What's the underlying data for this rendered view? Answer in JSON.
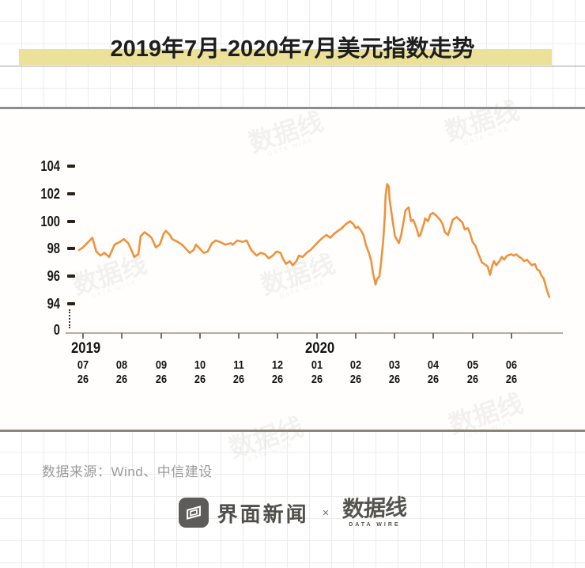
{
  "header": {
    "title": "2019年7月-2020年7月美元指数走势"
  },
  "source": {
    "label": "数据来源：Wind、中信建设"
  },
  "brand": {
    "jiemian": "界面新闻",
    "cross": "×",
    "datawire": "数据线",
    "datawire_sub": "DATA WIRE"
  },
  "watermark": {
    "text": "数据线",
    "sub": "DATA WIRE"
  },
  "colors": {
    "line": "#F0923C",
    "highlight": "#EBE199",
    "separator": "#8D8781",
    "grid": "#ECECEC",
    "axis_line": "#B3ACA3",
    "tick": "#2B2218",
    "label": "#1E1E1E",
    "muted": "#9B9B9B",
    "brand_gray": "#55544E"
  },
  "chart_data": {
    "type": "line",
    "title": "2019年7月-2020年7月美元指数走势",
    "series_name": "美元指数",
    "legend": "none",
    "grid": "off",
    "y_axis": {
      "ticks": [
        104,
        102,
        100,
        98,
        96,
        94
      ],
      "break_label": "0",
      "shown_range": [
        94,
        104
      ]
    },
    "x_axis": {
      "years": [
        "2019",
        "2020"
      ],
      "months": [
        "07",
        "08",
        "09",
        "10",
        "11",
        "12",
        "01",
        "02",
        "03",
        "04",
        "05",
        "06"
      ],
      "days": [
        "26",
        "26",
        "26",
        "26",
        "26",
        "26",
        "26",
        "26",
        "26",
        "26",
        "26",
        "26"
      ]
    },
    "points_note": "t = months after 2019-07-26, v = US Dollar Index",
    "points": [
      [
        -0.1,
        97.9
      ],
      [
        0.0,
        98.1
      ],
      [
        0.24,
        98.8
      ],
      [
        0.34,
        97.8
      ],
      [
        0.45,
        97.5
      ],
      [
        0.55,
        97.7
      ],
      [
        0.67,
        97.4
      ],
      [
        0.81,
        98.3
      ],
      [
        0.95,
        98.5
      ],
      [
        1.05,
        98.7
      ],
      [
        1.16,
        98.4
      ],
      [
        1.32,
        97.4
      ],
      [
        1.42,
        97.6
      ],
      [
        1.48,
        98.9
      ],
      [
        1.58,
        99.2
      ],
      [
        1.68,
        99.0
      ],
      [
        1.76,
        98.8
      ],
      [
        1.87,
        98.1
      ],
      [
        1.97,
        98.3
      ],
      [
        2.07,
        99.1
      ],
      [
        2.13,
        99.3
      ],
      [
        2.23,
        99.0
      ],
      [
        2.29,
        98.7
      ],
      [
        2.43,
        98.5
      ],
      [
        2.54,
        98.3
      ],
      [
        2.64,
        98.0
      ],
      [
        2.74,
        97.7
      ],
      [
        2.84,
        97.9
      ],
      [
        2.9,
        98.3
      ],
      [
        3.0,
        98.0
      ],
      [
        3.1,
        97.7
      ],
      [
        3.2,
        97.8
      ],
      [
        3.31,
        98.4
      ],
      [
        3.41,
        98.6
      ],
      [
        3.51,
        98.5
      ],
      [
        3.65,
        98.3
      ],
      [
        3.79,
        98.4
      ],
      [
        3.85,
        98.3
      ],
      [
        3.96,
        98.6
      ],
      [
        4.1,
        98.5
      ],
      [
        4.2,
        98.6
      ],
      [
        4.32,
        97.9
      ],
      [
        4.46,
        97.5
      ],
      [
        4.56,
        97.7
      ],
      [
        4.67,
        97.6
      ],
      [
        4.77,
        97.3
      ],
      [
        4.87,
        97.5
      ],
      [
        4.97,
        97.8
      ],
      [
        5.07,
        97.7
      ],
      [
        5.13,
        97.3
      ],
      [
        5.21,
        96.9
      ],
      [
        5.31,
        97.1
      ],
      [
        5.38,
        96.8
      ],
      [
        5.48,
        97.1
      ],
      [
        5.54,
        97.5
      ],
      [
        5.64,
        97.4
      ],
      [
        5.74,
        97.7
      ],
      [
        5.84,
        97.9
      ],
      [
        5.94,
        98.2
      ],
      [
        6.04,
        98.5
      ],
      [
        6.15,
        98.8
      ],
      [
        6.25,
        99.0
      ],
      [
        6.35,
        98.8
      ],
      [
        6.45,
        99.1
      ],
      [
        6.55,
        99.3
      ],
      [
        6.65,
        99.5
      ],
      [
        6.75,
        99.8
      ],
      [
        6.86,
        100.0
      ],
      [
        6.94,
        99.8
      ],
      [
        7.0,
        99.5
      ],
      [
        7.06,
        99.6
      ],
      [
        7.14,
        99.3
      ],
      [
        7.2,
        99.0
      ],
      [
        7.26,
        98.3
      ],
      [
        7.34,
        97.7
      ],
      [
        7.4,
        97.1
      ],
      [
        7.44,
        96.3
      ],
      [
        7.51,
        95.4
      ],
      [
        7.55,
        95.8
      ],
      [
        7.61,
        96.0
      ],
      [
        7.65,
        96.9
      ],
      [
        7.71,
        98.7
      ],
      [
        7.75,
        100.4
      ],
      [
        7.77,
        101.9
      ],
      [
        7.81,
        102.7
      ],
      [
        7.85,
        102.5
      ],
      [
        7.87,
        101.6
      ],
      [
        7.95,
        100.0
      ],
      [
        8.01,
        98.9
      ],
      [
        8.11,
        98.4
      ],
      [
        8.17,
        99.0
      ],
      [
        8.28,
        100.8
      ],
      [
        8.36,
        101.0
      ],
      [
        8.42,
        100.0
      ],
      [
        8.48,
        100.1
      ],
      [
        8.56,
        99.5
      ],
      [
        8.62,
        98.9
      ],
      [
        8.66,
        99.0
      ],
      [
        8.76,
        99.9
      ],
      [
        8.78,
        100.2
      ],
      [
        8.86,
        100.0
      ],
      [
        8.92,
        100.5
      ],
      [
        8.99,
        100.6
      ],
      [
        9.07,
        100.4
      ],
      [
        9.17,
        100.1
      ],
      [
        9.23,
        99.8
      ],
      [
        9.29,
        99.2
      ],
      [
        9.37,
        99.0
      ],
      [
        9.43,
        99.5
      ],
      [
        9.49,
        100.1
      ],
      [
        9.59,
        100.3
      ],
      [
        9.67,
        100.1
      ],
      [
        9.74,
        99.9
      ],
      [
        9.8,
        99.4
      ],
      [
        9.88,
        99.5
      ],
      [
        9.94,
        99.1
      ],
      [
        10.0,
        98.5
      ],
      [
        10.08,
        98.2
      ],
      [
        10.14,
        97.7
      ],
      [
        10.2,
        97.3
      ],
      [
        10.24,
        97.0
      ],
      [
        10.3,
        96.9
      ],
      [
        10.39,
        96.7
      ],
      [
        10.45,
        96.1
      ],
      [
        10.51,
        96.8
      ],
      [
        10.55,
        97.1
      ],
      [
        10.61,
        96.8
      ],
      [
        10.69,
        97.1
      ],
      [
        10.75,
        97.4
      ],
      [
        10.81,
        97.2
      ],
      [
        10.89,
        97.5
      ],
      [
        11.0,
        97.6
      ],
      [
        11.06,
        97.5
      ],
      [
        11.12,
        97.6
      ],
      [
        11.2,
        97.4
      ],
      [
        11.26,
        97.3
      ],
      [
        11.32,
        97.1
      ],
      [
        11.4,
        97.2
      ],
      [
        11.46,
        97.0
      ],
      [
        11.52,
        96.8
      ],
      [
        11.6,
        96.9
      ],
      [
        11.66,
        96.5
      ],
      [
        11.72,
        96.4
      ],
      [
        11.76,
        96.1
      ],
      [
        11.83,
        95.8
      ],
      [
        11.91,
        95.0
      ],
      [
        11.97,
        94.5
      ]
    ]
  }
}
